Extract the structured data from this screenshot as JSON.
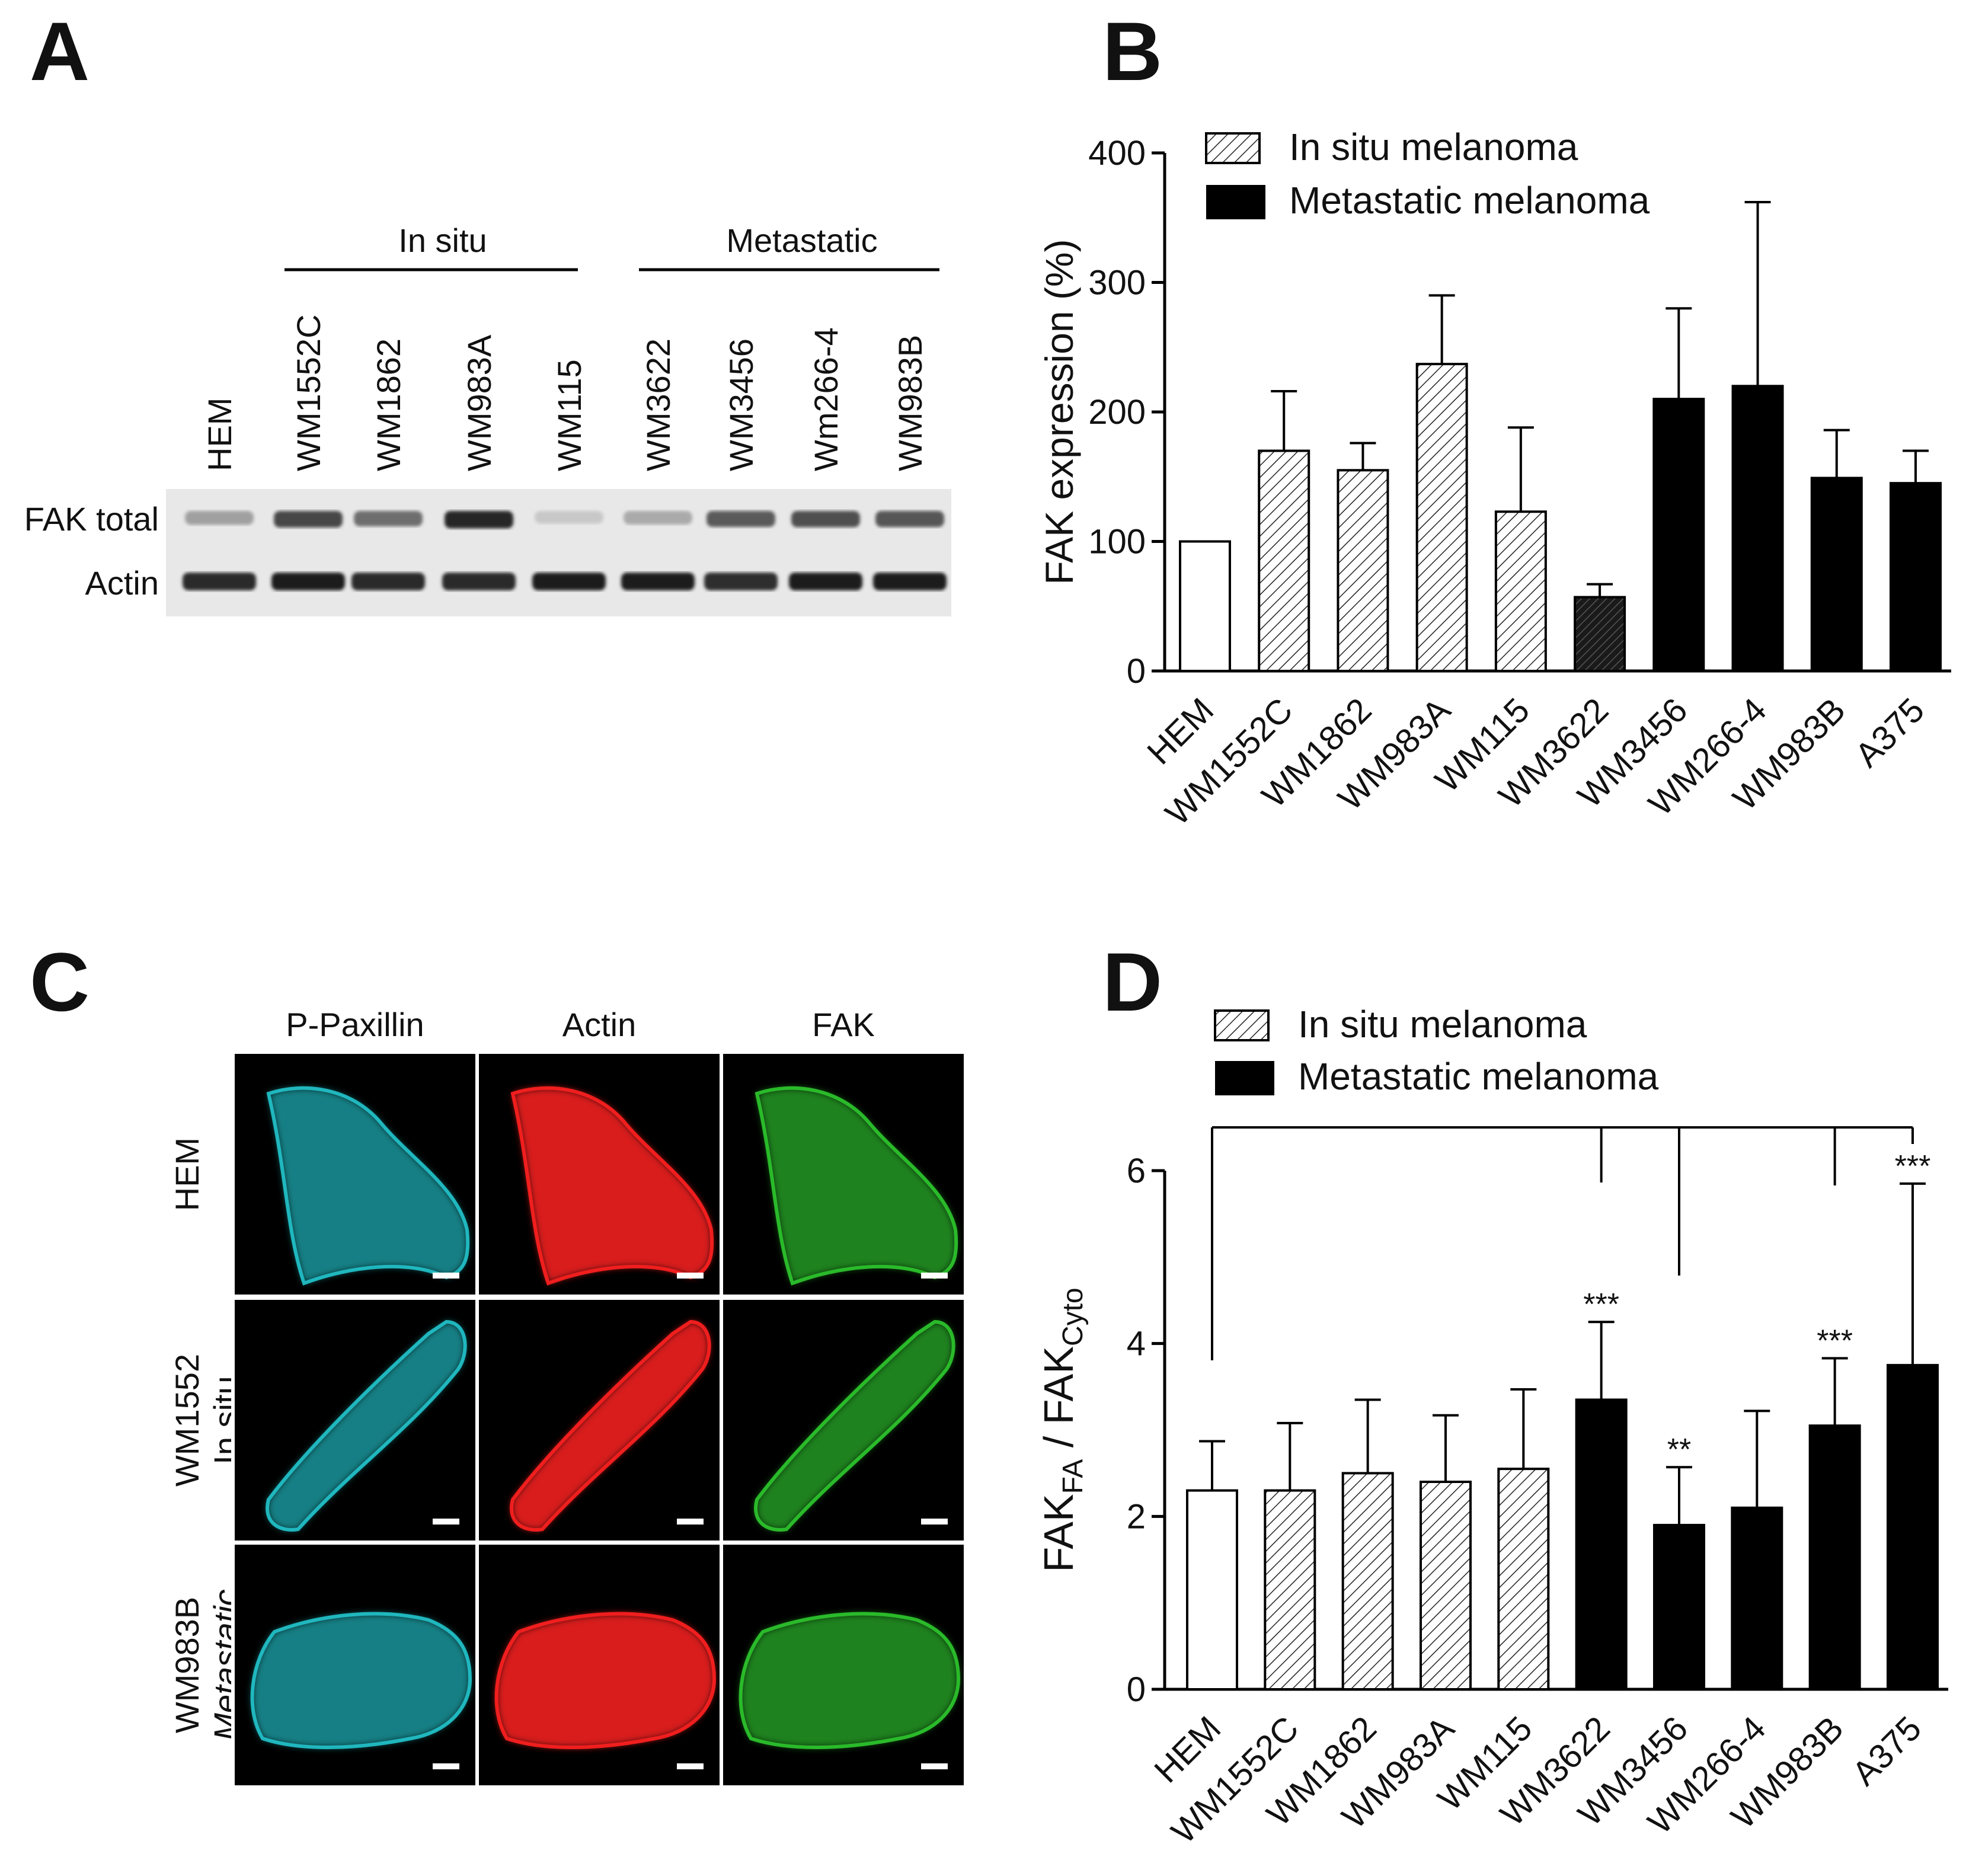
{
  "figure": {
    "panels": {
      "A": "A",
      "B": "B",
      "C": "C",
      "D": "D"
    }
  },
  "panel_a": {
    "group_in_situ": "In situ",
    "group_metastatic": "Metastatic",
    "lanes": [
      "HEM",
      "WM1552C",
      "WM1862",
      "WM983A",
      "WM115",
      "WM3622",
      "WM3456",
      "Wm266-4",
      "WM983B"
    ],
    "row_labels": [
      "FAK total",
      "Actin"
    ],
    "fak_band_intensity": [
      0.35,
      0.8,
      0.6,
      0.95,
      0.15,
      0.3,
      0.7,
      0.75,
      0.72
    ],
    "actin_band_intensity": [
      0.9,
      0.95,
      0.9,
      0.9,
      0.95,
      0.95,
      0.88,
      0.95,
      0.95
    ]
  },
  "panel_c": {
    "columns": [
      "P-Paxillin",
      "Actin",
      "FAK"
    ],
    "rows": [
      {
        "label_line1": "HEM",
        "label_line2": ""
      },
      {
        "label_line1": "WM1552",
        "label_line2": "In situ"
      },
      {
        "label_line1": "WM983B",
        "label_line2": "Metastatic"
      }
    ],
    "channel_colors": [
      "#22c4cc",
      "#ff2020",
      "#2ec82e"
    ]
  },
  "chart_data": [
    {
      "id": "B",
      "type": "bar",
      "categories": [
        "HEM",
        "WM1552C",
        "WM1862",
        "WM983A",
        "WM115",
        "WM3622",
        "WM3456",
        "WM266-4",
        "WM983B",
        "A375"
      ],
      "values": [
        100,
        170,
        155,
        237,
        123,
        57,
        210,
        220,
        149,
        145
      ],
      "errors": [
        0,
        46,
        21,
        53,
        65,
        10,
        70,
        142,
        37,
        25
      ],
      "fills": [
        "open",
        "hatch",
        "hatch",
        "hatch",
        "hatch",
        "dark",
        "black",
        "black",
        "black",
        "black"
      ],
      "ylabel": "FAK expression (%)",
      "ylim": [
        0,
        400
      ],
      "yticks": [
        "0",
        "100",
        "200",
        "300",
        "400"
      ],
      "legend": [
        "In situ melanoma",
        "Metastatic melanoma"
      ],
      "legend_position": "top-left"
    },
    {
      "id": "D",
      "type": "bar",
      "categories": [
        "HEM",
        "WM1552C",
        "WM1862",
        "WM983A",
        "WM115",
        "WM3622",
        "WM3456",
        "WM266-4",
        "WM983B",
        "A375"
      ],
      "values": [
        2.3,
        2.3,
        2.5,
        2.4,
        2.55,
        3.35,
        1.9,
        2.1,
        3.05,
        3.75
      ],
      "errors": [
        0.57,
        0.78,
        0.85,
        0.77,
        0.92,
        0.9,
        0.67,
        1.12,
        0.78,
        2.1
      ],
      "fills": [
        "open",
        "hatch",
        "hatch",
        "hatch",
        "hatch",
        "black",
        "black",
        "black",
        "black",
        "black"
      ],
      "significance": [
        "",
        "",
        "",
        "",
        "",
        "***",
        "**",
        "",
        "***",
        "***"
      ],
      "ylabel_main": "FAK",
      "ylabel_sub1": "FA",
      "ylabel_mid": " / FAK",
      "ylabel_sub2": "Cyto",
      "ylim": [
        0,
        6
      ],
      "yticks": [
        "0",
        "2",
        "4",
        "6"
      ],
      "legend": [
        "In situ melanoma",
        "Metastatic melanoma"
      ],
      "legend_position": "top-left",
      "comparison_bracket": {
        "from": "HEM",
        "to": [
          "WM3622",
          "WM3456",
          "WM983B",
          "A375"
        ]
      }
    }
  ]
}
